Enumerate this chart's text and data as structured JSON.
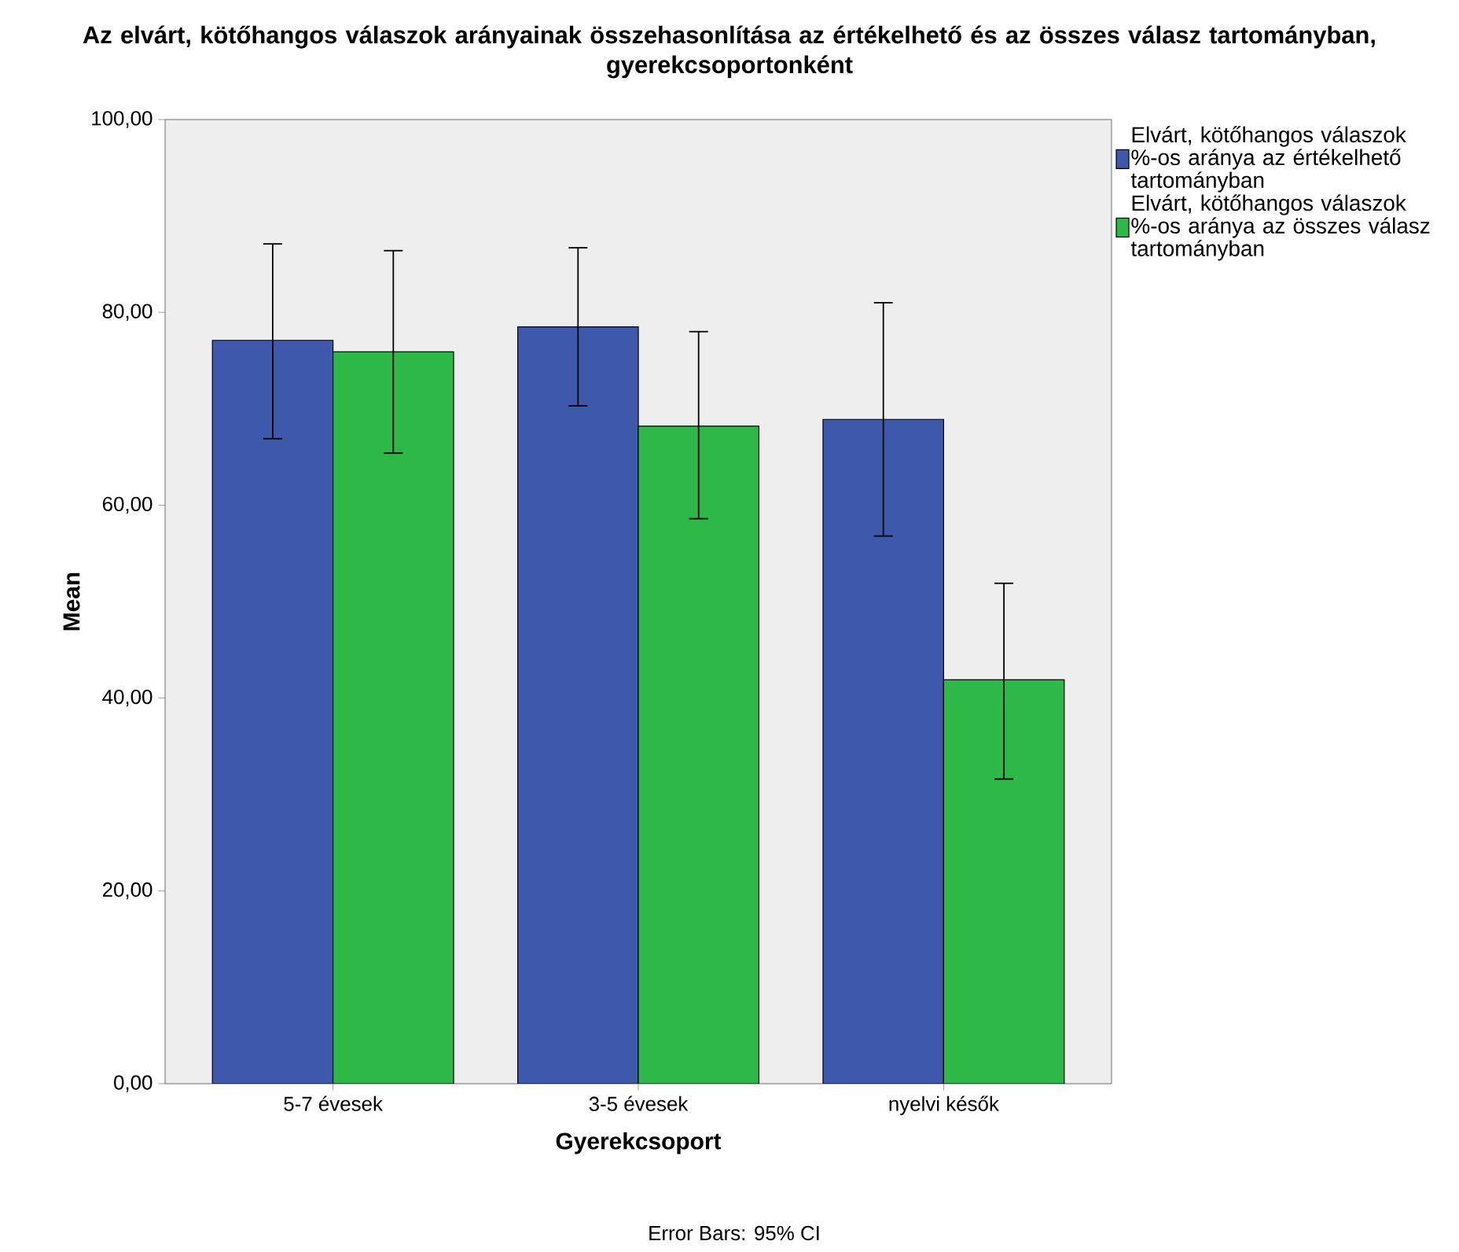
{
  "chart_data": {
    "type": "bar",
    "title": "Az elvárt, kötőhangos válaszok arányainak összehasonlítása az értékelhető és az összes válasz tartományban, gyerekcsoportonként",
    "xlabel": "Gyerekcsoport",
    "ylabel": "Mean",
    "categories": [
      "5-7 évesek",
      "3-5 évesek",
      "nyelvi késők"
    ],
    "series": [
      {
        "name": "Elvárt, kötőhangos válaszok %-os aránya az értékelhető tartományban",
        "color": "#3e58ac",
        "values": [
          77.1,
          78.5,
          68.9
        ],
        "errors": [
          [
            66.9,
            87.1
          ],
          [
            70.3,
            86.7
          ],
          [
            56.8,
            81.0
          ]
        ]
      },
      {
        "name": "Elvárt, kötőhangos válaszok %-os aránya az összes válasz tartományban",
        "color": "#2eb848",
        "values": [
          75.9,
          68.2,
          41.9
        ],
        "errors": [
          [
            65.4,
            86.4
          ],
          [
            58.6,
            78.0
          ],
          [
            31.6,
            51.9
          ]
        ]
      }
    ],
    "ylim": [
      0,
      100
    ],
    "yticks": [
      {
        "value": 0,
        "label": "0,00"
      },
      {
        "value": 20,
        "label": "20,00"
      },
      {
        "value": 40,
        "label": "40,00"
      },
      {
        "value": 60,
        "label": "60,00"
      },
      {
        "value": 80,
        "label": "80,00"
      },
      {
        "value": 100,
        "label": "100,00"
      }
    ],
    "legend": "right",
    "grid": false,
    "annotations": [
      "Error Bars: 95% CI"
    ]
  }
}
